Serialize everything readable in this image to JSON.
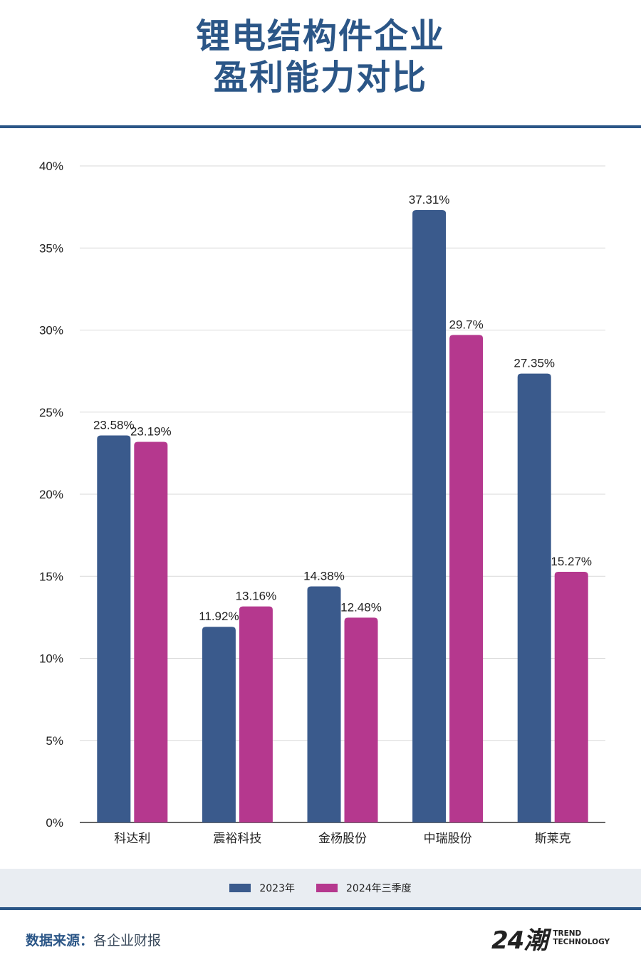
{
  "title": {
    "line1": "锂电结构件企业",
    "line2": "盈利能力对比"
  },
  "chart_data": {
    "type": "bar",
    "title": "锂电结构件企业盈利能力对比",
    "categories": [
      "科达利",
      "震裕科技",
      "金杨股份",
      "中瑞股份",
      "斯莱克"
    ],
    "series": [
      {
        "name": "2023年",
        "color": "#3a5a8c",
        "values": [
          23.58,
          11.92,
          14.38,
          37.31,
          27.35
        ],
        "labels": [
          "23.58%",
          "11.92%",
          "14.38%",
          "37.31%",
          "27.35%"
        ]
      },
      {
        "name": "2024年三季度",
        "color": "#b5388e",
        "values": [
          23.19,
          13.16,
          12.48,
          29.7,
          15.27
        ],
        "labels": [
          "23.19%",
          "13.16%",
          "12.48%",
          "29.7%",
          "15.27%"
        ]
      }
    ],
    "yticks": [
      0,
      5,
      10,
      15,
      20,
      25,
      30,
      35,
      40
    ],
    "ytick_labels": [
      "0%",
      "5%",
      "10%",
      "15%",
      "20%",
      "25%",
      "30%",
      "35%",
      "40%"
    ],
    "ylim": [
      0,
      40
    ],
    "grid": true,
    "legend_position": "bottom",
    "xlabel": "",
    "ylabel": ""
  },
  "legend": {
    "items": [
      {
        "label": "2023年",
        "color": "#3a5a8c"
      },
      {
        "label": "2024年三季度",
        "color": "#b5388e"
      }
    ]
  },
  "footer": {
    "source_label": "数据来源：",
    "source_text": "各企业财报",
    "logo_mark": "24潮",
    "logo_line1": "TREND",
    "logo_line2": "TECHNOLOGY"
  }
}
